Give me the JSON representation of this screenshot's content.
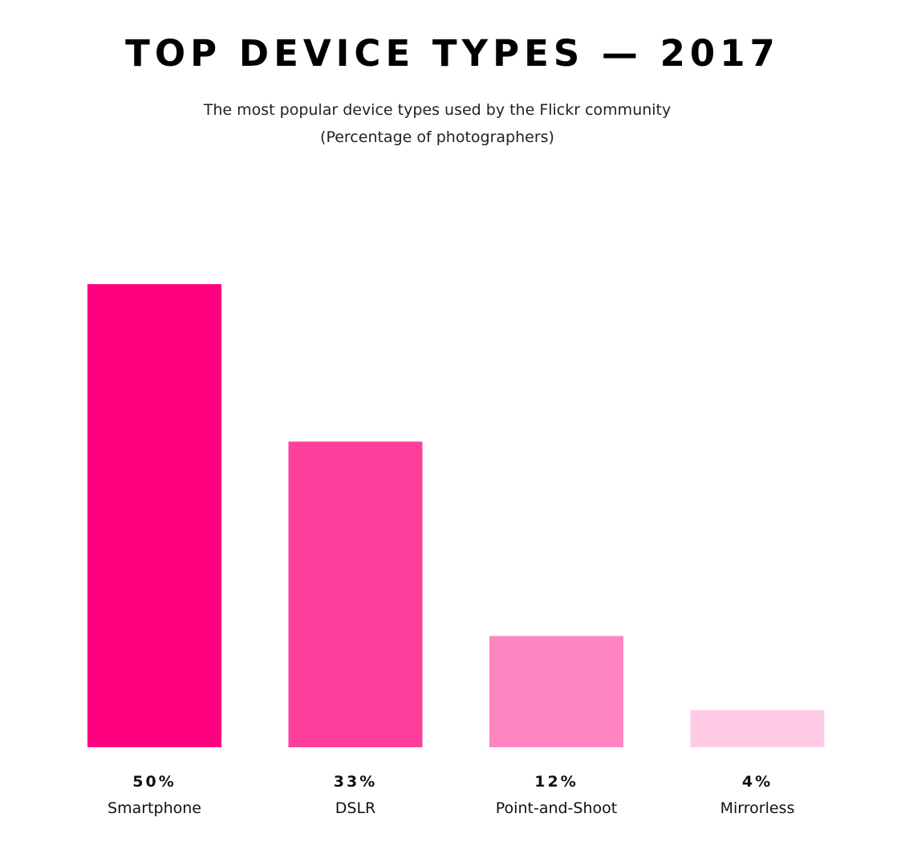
{
  "chart_data": {
    "type": "bar",
    "title": "TOP DEVICE TYPES — 2017",
    "subtitle": [
      "The most popular device types used by the Flickr community",
      "(Percentage of photographers)"
    ],
    "categories": [
      "Smartphone",
      "DSLR",
      "Point-and-Shoot",
      "Mirrorless"
    ],
    "values": [
      50,
      33,
      12,
      4
    ],
    "value_labels": [
      "50%",
      "33%",
      "12%",
      "4%"
    ],
    "colors": [
      "#ff0080",
      "#ff3f9c",
      "#ff85c1",
      "#ffcbe4"
    ],
    "ylim": [
      0,
      50
    ],
    "xlabel": "",
    "ylabel": "",
    "grid": false,
    "legend": "none"
  }
}
